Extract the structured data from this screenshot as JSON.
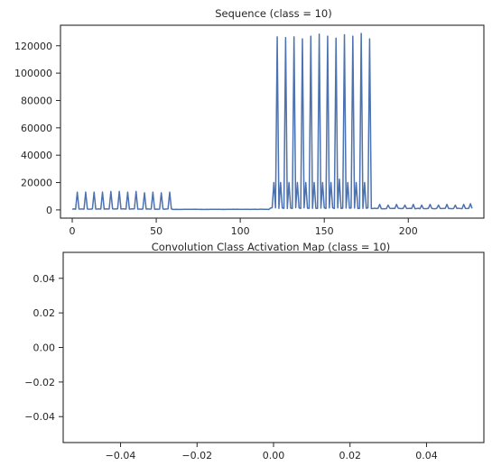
{
  "chart_data": [
    {
      "type": "line",
      "title": "Sequence (class = 10)",
      "xlabel": "",
      "ylabel": "",
      "xlim": [
        -7,
        245
      ],
      "ylim": [
        -6000,
        135000
      ],
      "xticks": [
        0,
        50,
        100,
        150,
        200
      ],
      "xtick_labels": [
        "0",
        "50",
        "100",
        "150",
        "200"
      ],
      "yticks": [
        0,
        20000,
        40000,
        60000,
        80000,
        100000,
        120000
      ],
      "ytick_labels": [
        "0",
        "20000",
        "40000",
        "60000",
        "80000",
        "100000",
        "120000"
      ],
      "grid": false,
      "line_color": "#4c72b0",
      "x_range": [
        0,
        238
      ],
      "segments": [
        {
          "x_start": 0,
          "x_end": 59,
          "baseline": 500,
          "peaks": [
            {
              "x": 3,
              "y": 13000
            },
            {
              "x": 8,
              "y": 13000
            },
            {
              "x": 13,
              "y": 13000
            },
            {
              "x": 18,
              "y": 13000
            },
            {
              "x": 23,
              "y": 13500
            },
            {
              "x": 28,
              "y": 13500
            },
            {
              "x": 33,
              "y": 13000
            },
            {
              "x": 38,
              "y": 13500
            },
            {
              "x": 43,
              "y": 12500
            },
            {
              "x": 48,
              "y": 13000
            },
            {
              "x": 53,
              "y": 12500
            },
            {
              "x": 58,
              "y": 13000
            }
          ]
        },
        {
          "x_start": 60,
          "x_end": 117,
          "baseline": 300,
          "peaks": []
        },
        {
          "x_start": 118,
          "x_end": 178,
          "baseline": 1000,
          "peaks": [
            {
              "x": 120,
              "y": 20000
            },
            {
              "x": 122,
              "y": 126500
            },
            {
              "x": 124,
              "y": 20000
            },
            {
              "x": 127,
              "y": 126000
            },
            {
              "x": 129,
              "y": 20000
            },
            {
              "x": 132,
              "y": 126500
            },
            {
              "x": 134,
              "y": 20000
            },
            {
              "x": 137,
              "y": 125000
            },
            {
              "x": 139,
              "y": 20000
            },
            {
              "x": 142,
              "y": 127000
            },
            {
              "x": 144,
              "y": 20000
            },
            {
              "x": 147,
              "y": 128500
            },
            {
              "x": 149,
              "y": 20000
            },
            {
              "x": 152,
              "y": 127000
            },
            {
              "x": 154,
              "y": 20000
            },
            {
              "x": 157,
              "y": 125500
            },
            {
              "x": 159,
              "y": 22500
            },
            {
              "x": 162,
              "y": 128000
            },
            {
              "x": 164,
              "y": 20000
            },
            {
              "x": 167,
              "y": 127000
            },
            {
              "x": 169,
              "y": 20000
            },
            {
              "x": 172,
              "y": 129000
            },
            {
              "x": 174,
              "y": 20000
            },
            {
              "x": 177,
              "y": 125000
            }
          ]
        },
        {
          "x_start": 179,
          "x_end": 238,
          "baseline": 800,
          "peaks": [
            {
              "x": 183,
              "y": 4000
            },
            {
              "x": 188,
              "y": 3500
            },
            {
              "x": 193,
              "y": 4000
            },
            {
              "x": 198,
              "y": 3500
            },
            {
              "x": 203,
              "y": 4000
            },
            {
              "x": 208,
              "y": 3500
            },
            {
              "x": 213,
              "y": 4000
            },
            {
              "x": 218,
              "y": 3500
            },
            {
              "x": 223,
              "y": 4000
            },
            {
              "x": 228,
              "y": 3500
            },
            {
              "x": 233,
              "y": 4000
            },
            {
              "x": 237,
              "y": 4500
            }
          ]
        }
      ]
    },
    {
      "type": "line",
      "title": "Convolution Class Activation Map (class = 10)",
      "xlabel": "",
      "ylabel": "",
      "xlim": [
        -0.055,
        0.055
      ],
      "ylim": [
        -0.055,
        0.055
      ],
      "xticks": [
        -0.04,
        -0.02,
        0.0,
        0.02,
        0.04
      ],
      "xtick_labels": [
        "−0.04",
        "−0.02",
        "0.00",
        "0.02",
        "0.04"
      ],
      "yticks": [
        0.04,
        0.02,
        0.0,
        -0.02,
        -0.04
      ],
      "ytick_labels": [
        "0.04",
        "0.02",
        "0.00",
        "−0.02",
        "−0.04"
      ],
      "grid": false,
      "series": []
    }
  ]
}
